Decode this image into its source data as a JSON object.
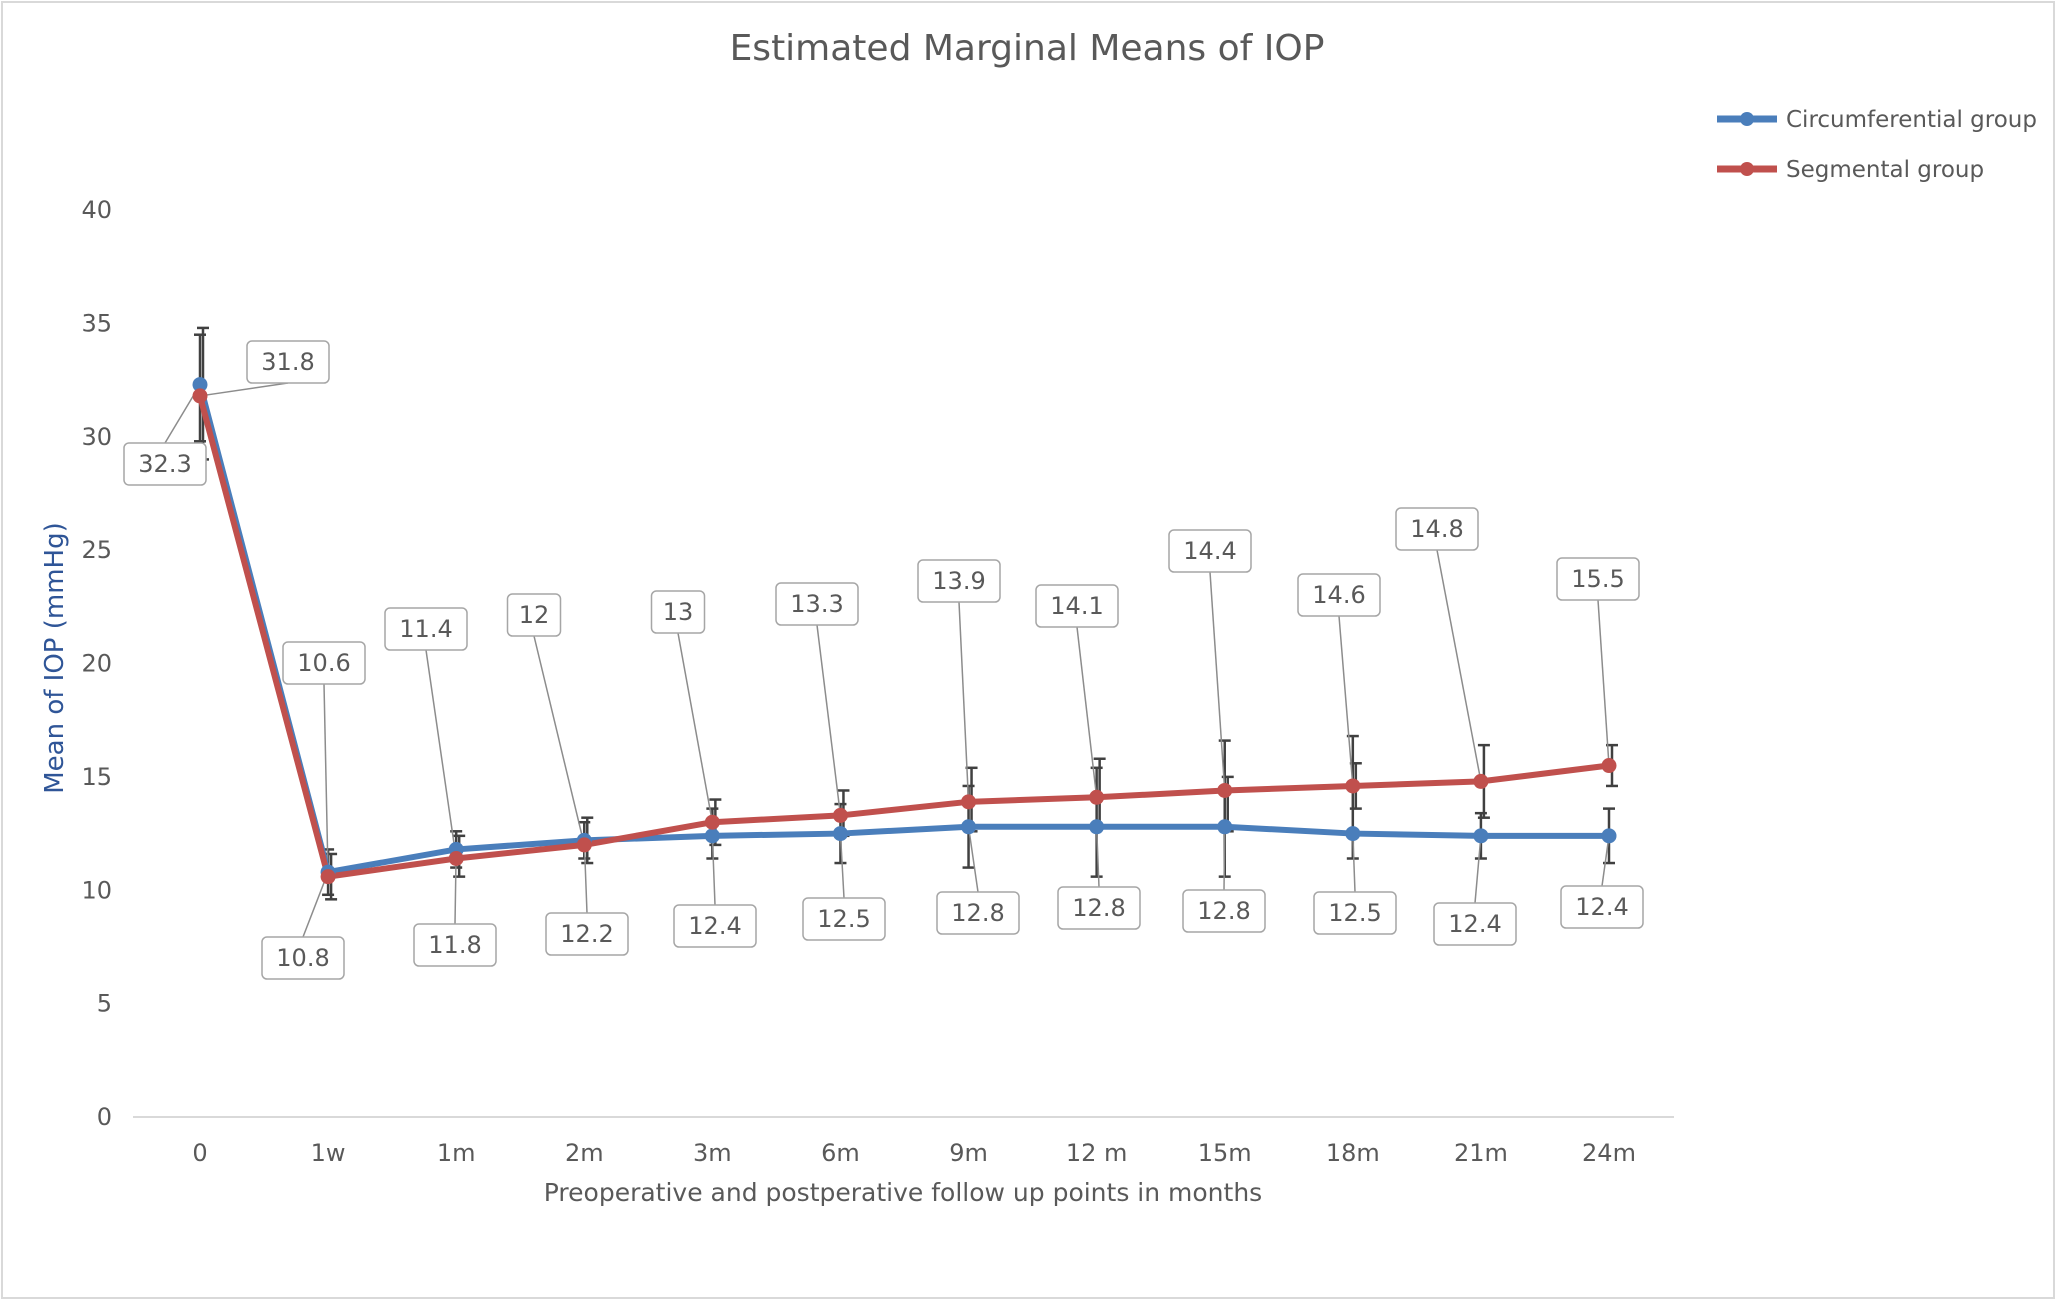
{
  "chart_data": {
    "type": "line",
    "title": "Estimated Marginal Means of IOP",
    "xlabel": "Preoperative and postperative follow up points in months",
    "ylabel": "Mean of IOP (mmHg)",
    "ylim": [
      0,
      40
    ],
    "yticks": [
      "0",
      "5",
      "10",
      "15",
      "20",
      "25",
      "30",
      "35",
      "40"
    ],
    "grid": false,
    "legend_position": "top-right",
    "categories": [
      "0",
      "1w",
      "1m",
      "2m",
      "3m",
      "6m",
      "9m",
      "12 m",
      "15m",
      "18m",
      "21m",
      "24m"
    ],
    "series": [
      {
        "name": "Circumferential group",
        "color": "#4a7ebb",
        "values": [
          32.3,
          10.8,
          11.8,
          12.2,
          12.4,
          12.5,
          12.8,
          12.8,
          12.8,
          12.5,
          12.4,
          12.4
        ],
        "labels": [
          "32.3",
          "10.8",
          "11.8",
          "12.2",
          "12.4",
          "12.5",
          "12.8",
          "12.8",
          "12.8",
          "12.5",
          "12.4",
          "12.4"
        ],
        "error_upper": [
          34.5,
          11.8,
          12.6,
          13.0,
          13.6,
          13.8,
          14.6,
          15.4,
          16.6,
          16.8,
          13.4,
          13.6
        ],
        "error_lower": [
          29.8,
          9.8,
          11.0,
          11.4,
          11.4,
          11.2,
          11.0,
          10.6,
          10.6,
          11.4,
          11.4,
          11.2
        ]
      },
      {
        "name": "Segmental group",
        "color": "#c0504d",
        "values": [
          31.8,
          10.6,
          11.4,
          12,
          13,
          13.3,
          13.9,
          14.1,
          14.4,
          14.6,
          14.8,
          15.5
        ],
        "labels": [
          "31.8",
          "10.6",
          "11.4",
          "12",
          "13",
          "13.3",
          "13.9",
          "14.1",
          "14.4",
          "14.6",
          "14.8",
          "15.5"
        ],
        "error_upper": [
          34.8,
          11.6,
          12.4,
          13.2,
          14.0,
          14.4,
          15.4,
          15.8,
          15.0,
          15.6,
          16.4,
          16.4
        ],
        "error_lower": [
          29.0,
          9.6,
          10.6,
          11.2,
          12.0,
          12.4,
          12.6,
          12.8,
          12.6,
          13.6,
          13.2,
          14.6
        ]
      }
    ]
  }
}
